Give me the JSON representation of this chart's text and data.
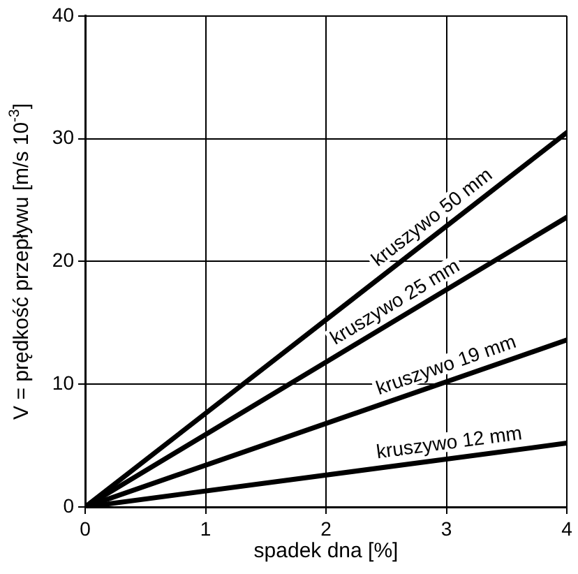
{
  "chart_data": {
    "type": "line",
    "xlabel": "spadek dna [%]",
    "ylabel": "V = prędkość przepływu [m/s 10$^{-3}$]",
    "x": [
      0,
      4
    ],
    "series": [
      {
        "name": "kruszywo 50 mm",
        "color": "#000000",
        "values": [
          0,
          30.5
        ]
      },
      {
        "name": "kruszywo 25 mm",
        "color": "#000000",
        "values": [
          0,
          23.6
        ]
      },
      {
        "name": "kruszywo 19 mm",
        "color": "#000000",
        "values": [
          0,
          13.6
        ]
      },
      {
        "name": "kruszywo 12 mm",
        "color": "#000000",
        "values": [
          0,
          5.2
        ]
      }
    ],
    "xlim": [
      0,
      4
    ],
    "xticks": [
      0,
      1,
      2,
      3,
      4
    ],
    "ylim": [
      0,
      40
    ],
    "yticks": [
      0,
      10,
      20,
      30,
      40
    ],
    "grid": true,
    "legend": false,
    "marker": "none",
    "line_style": "solid"
  }
}
